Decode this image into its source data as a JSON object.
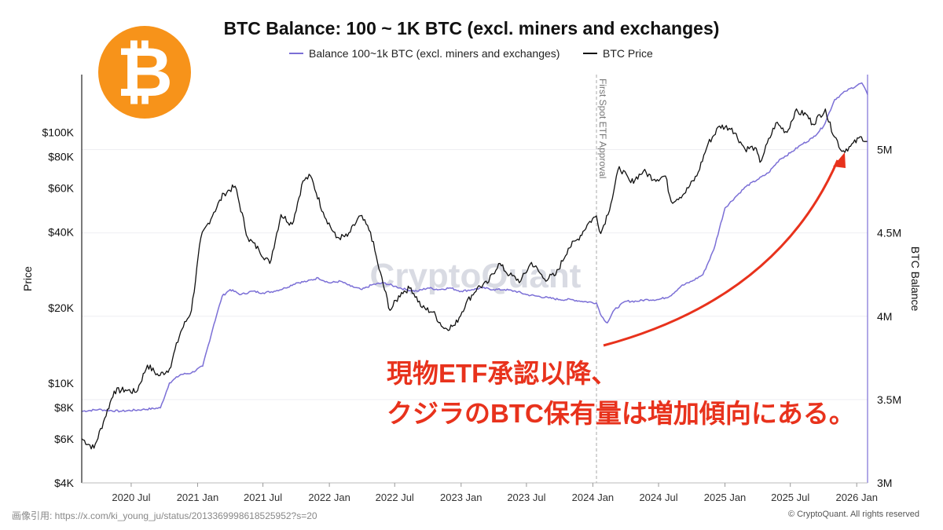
{
  "logo": {
    "name": "bitcoin-logo",
    "glyph": "₿",
    "color": "#f7931a"
  },
  "header": {
    "source_note": "画像引用: https://x.com/ki_young_ju/status/2013369998618525952?s=20"
  },
  "footer": {
    "copyright": "© CryptoQuant. All rights reserved"
  },
  "watermark": "CryptoQuant",
  "annotation": {
    "line1": "現物ETF承認以降、",
    "line2": "クジラのBTC保有量は増加傾向にある。",
    "color": "#e8321c"
  },
  "chart_data": {
    "type": "line",
    "title": "BTC Balance: 100 ~ 1K BTC (excl. miners and exchanges)",
    "legend_position": "top-center",
    "grid": true,
    "x_range": [
      "2020-02-15",
      "2026-01-31"
    ],
    "x_ticks": [
      {
        "date": "2020-07-01",
        "label": "2020 Jul"
      },
      {
        "date": "2021-01-01",
        "label": "2021 Jan"
      },
      {
        "date": "2021-07-01",
        "label": "2021 Jul"
      },
      {
        "date": "2022-01-01",
        "label": "2022 Jan"
      },
      {
        "date": "2022-07-01",
        "label": "2022 Jul"
      },
      {
        "date": "2023-01-01",
        "label": "2023 Jan"
      },
      {
        "date": "2023-07-01",
        "label": "2023 Jul"
      },
      {
        "date": "2024-01-01",
        "label": "2024 Jan"
      },
      {
        "date": "2024-07-01",
        "label": "2024 Jul"
      },
      {
        "date": "2025-01-01",
        "label": "2025 Jan"
      },
      {
        "date": "2025-07-01",
        "label": "2025 Jul"
      },
      {
        "date": "2026-01-01",
        "label": "2026 Jan"
      }
    ],
    "left_axis": {
      "label": "Price",
      "scale": "log",
      "range": [
        4000,
        170000
      ],
      "ticks": [
        {
          "value": 4000,
          "label": "$4K"
        },
        {
          "value": 6000,
          "label": "$6K"
        },
        {
          "value": 8000,
          "label": "$8K"
        },
        {
          "value": 10000,
          "label": "$10K"
        },
        {
          "value": 20000,
          "label": "$20K"
        },
        {
          "value": 40000,
          "label": "$40K"
        },
        {
          "value": 60000,
          "label": "$60K"
        },
        {
          "value": 80000,
          "label": "$80K"
        },
        {
          "value": 100000,
          "label": "$100K"
        }
      ]
    },
    "right_axis": {
      "label": "BTC Balance",
      "scale": "linear",
      "range": [
        3000000,
        5450000
      ],
      "ticks": [
        {
          "value": 3000000,
          "label": "3M"
        },
        {
          "value": 3500000,
          "label": "3.5M"
        },
        {
          "value": 4000000,
          "label": "4M"
        },
        {
          "value": 4500000,
          "label": "4.5M"
        },
        {
          "value": 5000000,
          "label": "5M"
        }
      ]
    },
    "event": {
      "date": "2024-01-11",
      "label": "First Spot ETF Approval"
    },
    "series": [
      {
        "name": "Balance 100~1k BTC (excl. miners and exchanges)",
        "axis": "right",
        "color": "#7b6fd6",
        "points": [
          [
            "2020-02-15",
            3430000
          ],
          [
            "2020-04-01",
            3440000
          ],
          [
            "2020-06-01",
            3430000
          ],
          [
            "2020-08-01",
            3440000
          ],
          [
            "2020-09-20",
            3450000
          ],
          [
            "2020-10-15",
            3600000
          ],
          [
            "2020-11-15",
            3650000
          ],
          [
            "2020-12-15",
            3660000
          ],
          [
            "2021-01-15",
            3700000
          ],
          [
            "2021-02-15",
            3950000
          ],
          [
            "2021-03-10",
            4120000
          ],
          [
            "2021-04-01",
            4160000
          ],
          [
            "2021-05-01",
            4130000
          ],
          [
            "2021-06-01",
            4150000
          ],
          [
            "2021-07-01",
            4140000
          ],
          [
            "2021-08-01",
            4150000
          ],
          [
            "2021-09-01",
            4170000
          ],
          [
            "2021-10-01",
            4200000
          ],
          [
            "2021-11-01",
            4210000
          ],
          [
            "2021-12-01",
            4230000
          ],
          [
            "2022-01-01",
            4200000
          ],
          [
            "2022-02-01",
            4210000
          ],
          [
            "2022-03-01",
            4180000
          ],
          [
            "2022-04-01",
            4160000
          ],
          [
            "2022-05-01",
            4190000
          ],
          [
            "2022-06-01",
            4200000
          ],
          [
            "2022-07-01",
            4180000
          ],
          [
            "2022-08-01",
            4160000
          ],
          [
            "2022-09-01",
            4150000
          ],
          [
            "2022-10-01",
            4170000
          ],
          [
            "2022-11-01",
            4160000
          ],
          [
            "2022-12-01",
            4170000
          ],
          [
            "2023-01-01",
            4150000
          ],
          [
            "2023-02-01",
            4160000
          ],
          [
            "2023-03-01",
            4170000
          ],
          [
            "2023-04-01",
            4160000
          ],
          [
            "2023-05-01",
            4160000
          ],
          [
            "2023-06-01",
            4150000
          ],
          [
            "2023-07-01",
            4130000
          ],
          [
            "2023-08-01",
            4120000
          ],
          [
            "2023-09-01",
            4110000
          ],
          [
            "2023-10-01",
            4100000
          ],
          [
            "2023-11-01",
            4100000
          ],
          [
            "2023-12-01",
            4090000
          ],
          [
            "2024-01-11",
            4080000
          ],
          [
            "2024-01-25",
            4000000
          ],
          [
            "2024-02-10",
            3960000
          ],
          [
            "2024-03-01",
            4040000
          ],
          [
            "2024-04-01",
            4090000
          ],
          [
            "2024-05-01",
            4090000
          ],
          [
            "2024-06-01",
            4100000
          ],
          [
            "2024-07-01",
            4100000
          ],
          [
            "2024-08-01",
            4120000
          ],
          [
            "2024-09-01",
            4180000
          ],
          [
            "2024-10-01",
            4210000
          ],
          [
            "2024-11-01",
            4250000
          ],
          [
            "2024-12-01",
            4400000
          ],
          [
            "2025-01-01",
            4650000
          ],
          [
            "2025-02-01",
            4720000
          ],
          [
            "2025-03-01",
            4780000
          ],
          [
            "2025-04-01",
            4820000
          ],
          [
            "2025-05-01",
            4860000
          ],
          [
            "2025-06-01",
            4940000
          ],
          [
            "2025-07-01",
            4980000
          ],
          [
            "2025-08-01",
            5030000
          ],
          [
            "2025-09-01",
            5070000
          ],
          [
            "2025-10-01",
            5140000
          ],
          [
            "2025-11-01",
            5300000
          ],
          [
            "2025-12-01",
            5350000
          ],
          [
            "2026-01-15",
            5400000
          ],
          [
            "2026-01-31",
            5330000
          ]
        ]
      },
      {
        "name": "BTC Price",
        "axis": "left",
        "color": "#111111",
        "points": [
          [
            "2020-02-15",
            6000
          ],
          [
            "2020-03-20",
            5500
          ],
          [
            "2020-04-15",
            7000
          ],
          [
            "2020-05-15",
            9300
          ],
          [
            "2020-06-15",
            9400
          ],
          [
            "2020-07-15",
            9200
          ],
          [
            "2020-08-15",
            11800
          ],
          [
            "2020-09-15",
            10700
          ],
          [
            "2020-10-15",
            11400
          ],
          [
            "2020-11-15",
            16000
          ],
          [
            "2020-12-15",
            19500
          ],
          [
            "2021-01-10",
            38000
          ],
          [
            "2021-02-15",
            48000
          ],
          [
            "2021-03-15",
            57000
          ],
          [
            "2021-04-15",
            61000
          ],
          [
            "2021-05-20",
            38000
          ],
          [
            "2021-06-20",
            34000
          ],
          [
            "2021-07-20",
            30000
          ],
          [
            "2021-08-20",
            47000
          ],
          [
            "2021-09-20",
            43000
          ],
          [
            "2021-10-20",
            64000
          ],
          [
            "2021-11-10",
            67000
          ],
          [
            "2021-12-15",
            48000
          ],
          [
            "2022-01-20",
            38000
          ],
          [
            "2022-02-20",
            38500
          ],
          [
            "2022-03-28",
            46500
          ],
          [
            "2022-04-25",
            40000
          ],
          [
            "2022-05-15",
            30000
          ],
          [
            "2022-06-18",
            19500
          ],
          [
            "2022-07-20",
            23000
          ],
          [
            "2022-08-15",
            24000
          ],
          [
            "2022-09-15",
            20000
          ],
          [
            "2022-10-15",
            19200
          ],
          [
            "2022-11-15",
            16500
          ],
          [
            "2022-12-15",
            17000
          ],
          [
            "2023-01-15",
            20900
          ],
          [
            "2023-02-15",
            24000
          ],
          [
            "2023-03-15",
            25000
          ],
          [
            "2023-04-15",
            30000
          ],
          [
            "2023-05-15",
            27000
          ],
          [
            "2023-06-15",
            25500
          ],
          [
            "2023-07-15",
            30300
          ],
          [
            "2023-08-20",
            26000
          ],
          [
            "2023-09-20",
            27000
          ],
          [
            "2023-10-25",
            34500
          ],
          [
            "2023-11-20",
            37500
          ],
          [
            "2023-12-20",
            43500
          ],
          [
            "2024-01-11",
            46500
          ],
          [
            "2024-01-23",
            39500
          ],
          [
            "2024-02-20",
            52000
          ],
          [
            "2024-03-14",
            73000
          ],
          [
            "2024-04-15",
            63000
          ],
          [
            "2024-05-20",
            70000
          ],
          [
            "2024-06-20",
            65000
          ],
          [
            "2024-07-20",
            67000
          ],
          [
            "2024-08-05",
            53000
          ],
          [
            "2024-09-10",
            57000
          ],
          [
            "2024-10-15",
            67000
          ],
          [
            "2024-11-15",
            90000
          ],
          [
            "2024-12-17",
            106000
          ],
          [
            "2025-01-20",
            104000
          ],
          [
            "2025-02-25",
            86000
          ],
          [
            "2025-03-25",
            87000
          ],
          [
            "2025-04-08",
            76000
          ],
          [
            "2025-05-22",
            109000
          ],
          [
            "2025-06-22",
            100000
          ],
          [
            "2025-07-14",
            121000
          ],
          [
            "2025-08-14",
            118000
          ],
          [
            "2025-09-01",
            108000
          ],
          [
            "2025-10-06",
            124000
          ],
          [
            "2025-10-15",
            110000
          ],
          [
            "2025-11-21",
            84000
          ],
          [
            "2025-12-15",
            88000
          ],
          [
            "2026-01-14",
            96000
          ],
          [
            "2026-01-31",
            92000
          ]
        ]
      }
    ]
  }
}
